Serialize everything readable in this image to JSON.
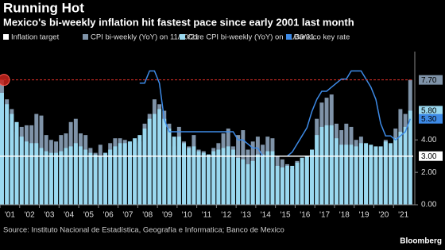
{
  "chart_data": {
    "type": "bar",
    "title": "Running Hot",
    "subtitle": "Mexico's bi-weekly inflation hit fastest pace since early 2001 last month",
    "source": "Source: Instituto Nacional de Estadística, Geografía e Informatica; Banco de Mexico",
    "credit": "Bloomberg",
    "target": {
      "name": "Inflation target",
      "color": "#ffffff",
      "value": 3,
      "label": "3.00"
    },
    "x": [
      2001,
      2001.25,
      2001.5,
      2001.75,
      2002,
      2002.25,
      2002.5,
      2002.75,
      2003,
      2003.25,
      2003.5,
      2003.75,
      2004,
      2004.25,
      2004.5,
      2004.75,
      2005,
      2005.25,
      2005.5,
      2005.75,
      2006,
      2006.25,
      2006.5,
      2006.75,
      2007,
      2007.25,
      2007.5,
      2007.75,
      2008,
      2008.25,
      2008.5,
      2008.75,
      2009,
      2009.25,
      2009.5,
      2009.75,
      2010,
      2010.25,
      2010.5,
      2010.75,
      2011,
      2011.25,
      2011.5,
      2011.75,
      2012,
      2012.25,
      2012.5,
      2012.75,
      2013,
      2013.25,
      2013.5,
      2013.75,
      2014,
      2014.25,
      2014.5,
      2014.75,
      2015,
      2015.25,
      2015.5,
      2015.75,
      2016,
      2016.25,
      2016.5,
      2016.75,
      2017,
      2017.25,
      2017.5,
      2017.75,
      2018,
      2018.25,
      2018.5,
      2018.75,
      2019,
      2019.25,
      2019.5,
      2019.75,
      2020,
      2020.25,
      2020.5,
      2020.75,
      2021,
      2021.25,
      2021.5,
      2021.75
    ],
    "series": [
      {
        "name": "CPI bi-weekly (YoY) on 11/30/21",
        "color": "#7f93a8",
        "values": [
          7.7,
          6.5,
          5.9,
          4.5,
          4.8,
          4.9,
          4.9,
          5.6,
          5.5,
          4.3,
          4.0,
          3.9,
          4.3,
          4.4,
          5.1,
          5.3,
          4.4,
          4.3,
          3.5,
          3.2,
          3.7,
          3.2,
          3.8,
          4.1,
          4.1,
          4.0,
          3.9,
          3.8,
          3.9,
          5.0,
          5.6,
          6.5,
          6.2,
          5.8,
          5.0,
          3.6,
          4.8,
          3.9,
          3.6,
          4.3,
          3.4,
          3.3,
          3.1,
          3.5,
          3.8,
          4.4,
          4.7,
          3.6,
          4.3,
          4.6,
          3.4,
          3.9,
          4.2,
          3.7,
          4.2,
          4.1,
          3.0,
          2.8,
          2.5,
          2.2,
          2.7,
          2.6,
          3.0,
          3.4,
          5.3,
          6.3,
          6.6,
          6.8,
          5.0,
          4.6,
          5.0,
          4.8,
          4.0,
          4.2,
          3.0,
          2.8,
          3.3,
          2.8,
          4.0,
          3.2,
          4.7,
          5.9,
          5.6,
          7.7
        ],
        "value_labels_last": "7.70"
      },
      {
        "name": "Core CPI bi-weekly (YoY) on 11/30/21",
        "color": "#9ad8ef",
        "values": [
          6.9,
          6.2,
          5.6,
          5.1,
          4.2,
          3.9,
          3.8,
          3.8,
          3.5,
          3.3,
          3.2,
          3.2,
          3.3,
          3.5,
          3.6,
          3.8,
          3.6,
          3.4,
          3.2,
          3.1,
          3.0,
          3.2,
          3.4,
          3.6,
          3.8,
          3.8,
          3.9,
          4.1,
          4.3,
          4.7,
          5.3,
          5.6,
          5.9,
          5.3,
          4.7,
          4.2,
          4.2,
          3.8,
          3.5,
          3.6,
          3.3,
          3.2,
          3.1,
          3.3,
          3.4,
          3.5,
          3.6,
          3.4,
          2.9,
          2.8,
          2.5,
          2.7,
          3.1,
          3.1,
          3.3,
          3.3,
          2.4,
          2.3,
          2.4,
          2.4,
          2.6,
          2.9,
          3.0,
          3.4,
          4.3,
          4.8,
          4.9,
          4.9,
          4.1,
          3.7,
          3.7,
          3.7,
          3.6,
          3.8,
          3.8,
          3.7,
          3.6,
          3.6,
          3.9,
          3.8,
          4.1,
          4.5,
          4.8,
          5.8
        ],
        "value_labels_last": "5.80"
      },
      {
        "name": "Banxico key rate",
        "color": "#3d8ae6",
        "line": true,
        "values": [
          null,
          null,
          null,
          null,
          null,
          null,
          null,
          null,
          null,
          null,
          null,
          null,
          null,
          null,
          null,
          null,
          null,
          null,
          null,
          null,
          null,
          null,
          null,
          null,
          null,
          null,
          null,
          null,
          7.5,
          7.5,
          8.25,
          8.25,
          7.5,
          5.25,
          4.5,
          4.5,
          4.5,
          4.5,
          4.5,
          4.5,
          4.5,
          4.5,
          4.5,
          4.5,
          4.5,
          4.5,
          4.5,
          4.5,
          4.0,
          4.0,
          3.75,
          3.5,
          3.5,
          3.0,
          3.0,
          3.0,
          3.0,
          3.0,
          3.0,
          3.25,
          3.75,
          4.25,
          4.75,
          5.75,
          6.5,
          7.0,
          7.0,
          7.25,
          7.5,
          7.75,
          7.75,
          8.25,
          8.25,
          8.25,
          7.75,
          7.25,
          6.5,
          5.0,
          4.25,
          4.25,
          4.0,
          4.25,
          4.5,
          5.3
        ],
        "value_labels_last": "5.30"
      }
    ],
    "xlim": [
      2001,
      2022
    ],
    "xticks": [
      {
        "value": 2001,
        "label": "'01"
      },
      {
        "value": 2002,
        "label": "'02"
      },
      {
        "value": 2003,
        "label": "'03"
      },
      {
        "value": 2004,
        "label": "'04"
      },
      {
        "value": 2005,
        "label": "'05"
      },
      {
        "value": 2006,
        "label": "'06"
      },
      {
        "value": 2007,
        "label": "'07"
      },
      {
        "value": 2008,
        "label": "'08"
      },
      {
        "value": 2009,
        "label": "'09"
      },
      {
        "value": 2010,
        "label": "'10"
      },
      {
        "value": 2011,
        "label": "'11"
      },
      {
        "value": 2012,
        "label": "'12"
      },
      {
        "value": 2013,
        "label": "'13"
      },
      {
        "value": 2014,
        "label": "'14"
      },
      {
        "value": 2015,
        "label": "'15"
      },
      {
        "value": 2016,
        "label": "'16"
      },
      {
        "value": 2017,
        "label": "'17"
      },
      {
        "value": 2018,
        "label": "'18"
      },
      {
        "value": 2019,
        "label": "'19"
      },
      {
        "value": 2020,
        "label": "'20"
      },
      {
        "value": 2021,
        "label": "'21"
      }
    ],
    "ylim": [
      0,
      9.2
    ],
    "yticks": [
      {
        "value": 0,
        "label": "0.00"
      },
      {
        "value": 2,
        "label": "2.00"
      },
      {
        "value": 4,
        "label": "4.00"
      }
    ]
  }
}
